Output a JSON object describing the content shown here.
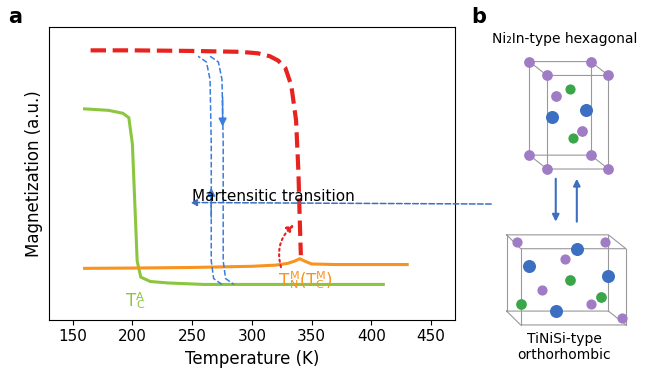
{
  "chart_data": {
    "type": "line",
    "panel_label": "a",
    "x_label": "Temperature (K)",
    "y_label": "Magnetization (a.u.)",
    "xlim": [
      130,
      470
    ],
    "xticks": [
      150,
      200,
      250,
      300,
      350,
      400,
      450
    ],
    "ylim": [
      0,
      1
    ],
    "yticks": [],
    "tick_labels": "x",
    "grid": false,
    "series": [
      {
        "color": "#8cc63f",
        "line_style": "solid",
        "x": [
          160,
          180,
          192,
          197,
          200,
          202,
          204,
          207,
          215,
          230,
          260,
          300,
          350,
          410
        ],
        "values": [
          0.72,
          0.715,
          0.705,
          0.69,
          0.6,
          0.4,
          0.2,
          0.145,
          0.13,
          0.125,
          0.12,
          0.12,
          0.12,
          0.12
        ]
      },
      {
        "color": "#f7931e",
        "line_style": "solid",
        "x": [
          160,
          200,
          250,
          300,
          320,
          330,
          336,
          340,
          344,
          350,
          370,
          400,
          430
        ],
        "values": [
          0.175,
          0.176,
          0.178,
          0.182,
          0.186,
          0.192,
          0.2,
          0.208,
          0.2,
          0.19,
          0.188,
          0.188,
          0.188
        ]
      },
      {
        "color": "#e8231f",
        "line_style": "dashed",
        "x": [
          165,
          200,
          250,
          290,
          305,
          315,
          322,
          328,
          333,
          337,
          339,
          340,
          341
        ],
        "values": [
          0.92,
          0.92,
          0.918,
          0.915,
          0.91,
          0.9,
          0.885,
          0.86,
          0.8,
          0.68,
          0.5,
          0.35,
          0.22
        ]
      },
      {
        "color": "#3b7ddd",
        "line_style": "dashed",
        "x": [
          275,
          268,
          266,
          266,
          265,
          262,
          255
        ],
        "values": [
          0.12,
          0.14,
          0.2,
          0.6,
          0.82,
          0.88,
          0.9
        ]
      },
      {
        "color": "#3b7ddd",
        "line_style": "dashed",
        "x": [
          265,
          272,
          275,
          276,
          276,
          278,
          285
        ],
        "values": [
          0.9,
          0.88,
          0.82,
          0.6,
          0.2,
          0.14,
          0.12
        ]
      }
    ],
    "annotations": {
      "transition": "Martensitic transition",
      "tc_austenite": {
        "color": "#8cc63f",
        "parts": [
          {
            "text": "T"
          },
          {
            "sub": "C",
            "sup": "A"
          }
        ]
      },
      "tn_martensite": {
        "color": "#f7931e",
        "parts": [
          {
            "text": "T"
          },
          {
            "sub": "N",
            "sup": "M"
          },
          {
            "text": "("
          },
          {
            "text": "T"
          },
          {
            "sub": "C",
            "sup": "M"
          },
          {
            "text": ")"
          }
        ]
      }
    }
  },
  "diagram": {
    "panel_label": "b",
    "top_structure": "Ni₂In-type hexagonal",
    "bottom_structure": "TiNiSi-type\northorhombic"
  }
}
